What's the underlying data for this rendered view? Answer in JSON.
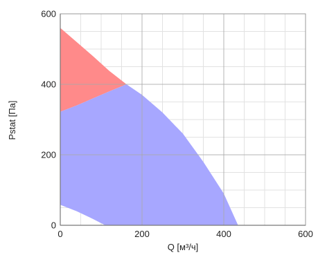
{
  "chart_data": {
    "type": "area",
    "title": "",
    "xlabel": "Q [м³/ч]",
    "ylabel": "Pstat [Па]",
    "xlim": [
      0,
      600
    ],
    "ylim": [
      0,
      600
    ],
    "x_ticks": [
      "0",
      "200",
      "400",
      "600"
    ],
    "y_ticks": [
      "0",
      "200",
      "400",
      "600"
    ],
    "grid": true,
    "minor_grid": true,
    "colors": {
      "red_region": "#ff8a8a",
      "blue_region": "#a7a7ff",
      "major_grid": "#a8a8a8",
      "minor_grid": "#e2e2e2",
      "frame": "#9a9a9a"
    },
    "regions": [
      {
        "color_key": "red_region",
        "boundary": [
          {
            "x": 0,
            "y": 560
          },
          {
            "x": 40,
            "y": 520
          },
          {
            "x": 80,
            "y": 480
          },
          {
            "x": 120,
            "y": 438
          },
          {
            "x": 162,
            "y": 400
          },
          {
            "x": 120,
            "y": 380
          },
          {
            "x": 80,
            "y": 360
          },
          {
            "x": 40,
            "y": 340
          },
          {
            "x": 0,
            "y": 322
          }
        ]
      },
      {
        "color_key": "blue_region",
        "boundary": [
          {
            "x": 0,
            "y": 322
          },
          {
            "x": 40,
            "y": 340
          },
          {
            "x": 80,
            "y": 360
          },
          {
            "x": 120,
            "y": 380
          },
          {
            "x": 162,
            "y": 400
          },
          {
            "x": 200,
            "y": 370
          },
          {
            "x": 250,
            "y": 320
          },
          {
            "x": 300,
            "y": 260
          },
          {
            "x": 350,
            "y": 180
          },
          {
            "x": 400,
            "y": 90
          },
          {
            "x": 435,
            "y": 0
          },
          {
            "x": 110,
            "y": 0
          },
          {
            "x": 80,
            "y": 18
          },
          {
            "x": 40,
            "y": 40
          },
          {
            "x": 0,
            "y": 58
          }
        ]
      }
    ]
  }
}
